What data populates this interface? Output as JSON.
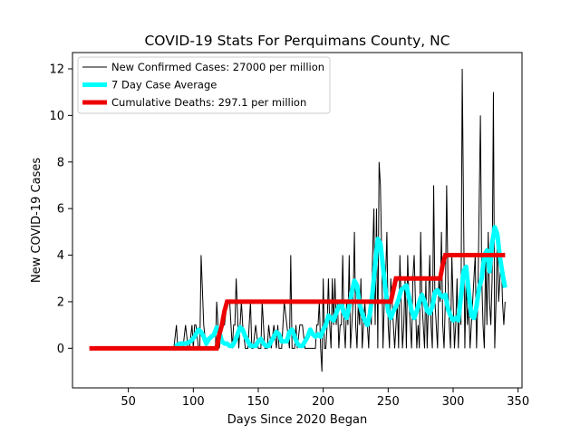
{
  "chart_data": {
    "type": "line",
    "title": "COVID-19 Stats For Perquimans County, NC",
    "xlabel": "Days Since 2020 Began",
    "ylabel": "New COVID-19 Cases",
    "xlim": [
      7,
      353
    ],
    "ylim": [
      -1.7,
      12.7
    ],
    "xticks": [
      50,
      100,
      150,
      200,
      250,
      300,
      350
    ],
    "yticks": [
      0,
      2,
      4,
      6,
      8,
      10,
      12
    ],
    "grid": false,
    "legend_position": "top-left",
    "series": [
      {
        "name": "New Confirmed Cases: 27000 per million",
        "color": "#000000",
        "style": "thin",
        "x": [
          20,
          85,
          87,
          88,
          90,
          92,
          94,
          96,
          97,
          99,
          100,
          101,
          102,
          104,
          105,
          106,
          108,
          110,
          112,
          114,
          116,
          117,
          118,
          119,
          120,
          122,
          124,
          126,
          128,
          130,
          131,
          132,
          133,
          135,
          137,
          138,
          140,
          142,
          144,
          145,
          146,
          148,
          150,
          152,
          153,
          155,
          157,
          158,
          160,
          162,
          164,
          165,
          166,
          168,
          170,
          172,
          174,
          175,
          176,
          178,
          179,
          180,
          182,
          184,
          186,
          188,
          190,
          192,
          194,
          195,
          196,
          197,
          198,
          199,
          200,
          201,
          202,
          203,
          204,
          205,
          206,
          207,
          208,
          209,
          210,
          211,
          212,
          213,
          214,
          215,
          216,
          217,
          218,
          219,
          220,
          221,
          222,
          223,
          224,
          225,
          226,
          227,
          228,
          229,
          230,
          231,
          232,
          233,
          234,
          235,
          236,
          237,
          238,
          239,
          240,
          241,
          242,
          243,
          244,
          245,
          246,
          247,
          248,
          249,
          250,
          251,
          252,
          253,
          254,
          255,
          256,
          257,
          258,
          259,
          260,
          261,
          262,
          263,
          264,
          265,
          266,
          267,
          268,
          269,
          270,
          271,
          272,
          273,
          274,
          275,
          276,
          277,
          278,
          279,
          280,
          281,
          282,
          283,
          284,
          285,
          286,
          287,
          288,
          289,
          290,
          291,
          292,
          293,
          294,
          295,
          296,
          297,
          298,
          299,
          300,
          301,
          302,
          303,
          304,
          305,
          306,
          307,
          308,
          309,
          310,
          311,
          312,
          313,
          314,
          315,
          316,
          317,
          318,
          319,
          320,
          321,
          322,
          323,
          324,
          325,
          326,
          327,
          328,
          329,
          330,
          331,
          332,
          333,
          334,
          335,
          336,
          337,
          338,
          339,
          340
        ],
        "y": [
          0,
          0,
          1,
          0,
          0,
          0,
          1,
          0,
          0,
          1,
          0,
          1,
          1,
          0,
          0,
          4,
          1,
          0,
          0,
          0,
          0,
          0,
          2,
          1,
          0,
          1,
          1,
          2,
          2,
          0,
          1,
          1,
          3,
          0,
          2,
          1,
          0,
          0,
          2,
          0,
          0,
          1,
          0,
          0,
          2,
          0,
          0,
          1,
          0,
          1,
          0,
          1,
          0,
          0,
          2,
          1,
          0,
          4,
          0,
          0,
          1,
          0,
          1,
          1,
          0,
          0,
          0,
          0,
          0,
          1,
          1,
          2,
          0,
          -1,
          3,
          0,
          0,
          1,
          3,
          1,
          0,
          3,
          1,
          3,
          1,
          2,
          0,
          1,
          1,
          4,
          1,
          0,
          2,
          1,
          4,
          0,
          1,
          2,
          5,
          1,
          0,
          2,
          1,
          3,
          0,
          1,
          2,
          1,
          1,
          0,
          2,
          1,
          4,
          6,
          1,
          6,
          0,
          8,
          7,
          4,
          0,
          2,
          3,
          5,
          1,
          0,
          3,
          2,
          1,
          0,
          1,
          2,
          0,
          4,
          2,
          0,
          1,
          3,
          0,
          4,
          2,
          1,
          0,
          3,
          4,
          2,
          0,
          1,
          0,
          5,
          2,
          1,
          0,
          3,
          0,
          2,
          4,
          1,
          0,
          7,
          2,
          1,
          0,
          3,
          2,
          5,
          1,
          0,
          2,
          7,
          3,
          1,
          0,
          4,
          2,
          0,
          1,
          3,
          0,
          2,
          1,
          12,
          6,
          0,
          3,
          1,
          2,
          0,
          1,
          2,
          3,
          4,
          0,
          2,
          6,
          10,
          3,
          1,
          0,
          4,
          1,
          5,
          2,
          1,
          3,
          11,
          0,
          2,
          5,
          2,
          3,
          4,
          2,
          1,
          2
        ]
      },
      {
        "name": "7 Day Case Average",
        "color": "#00ffff",
        "style": "thick",
        "x": [
          86,
          90,
          94,
          98,
          101,
          104,
          106,
          108,
          110,
          112,
          114,
          116,
          118,
          120,
          122,
          124,
          126,
          128,
          130,
          132,
          134,
          136,
          138,
          140,
          142,
          144,
          146,
          148,
          150,
          152,
          154,
          156,
          158,
          160,
          162,
          164,
          166,
          168,
          170,
          172,
          174,
          176,
          178,
          180,
          182,
          184,
          186,
          188,
          190,
          192,
          194,
          196,
          198,
          200,
          202,
          204,
          206,
          208,
          210,
          212,
          214,
          216,
          218,
          220,
          222,
          224,
          226,
          228,
          230,
          232,
          234,
          236,
          238,
          240,
          242,
          244,
          246,
          248,
          250,
          252,
          254,
          256,
          258,
          260,
          262,
          264,
          266,
          268,
          270,
          272,
          274,
          276,
          278,
          280,
          282,
          284,
          286,
          288,
          290,
          292,
          294,
          296,
          298,
          300,
          302,
          304,
          306,
          308,
          310,
          312,
          314,
          316,
          318,
          320,
          322,
          324,
          326,
          328,
          330,
          332,
          334,
          336,
          338,
          340
        ],
        "y": [
          0.1,
          0.2,
          0.2,
          0.3,
          0.5,
          0.8,
          0.7,
          0.5,
          0.2,
          0.4,
          0.5,
          0.6,
          0.9,
          0.7,
          0.3,
          0.2,
          0.2,
          0.1,
          0.1,
          0.3,
          0.6,
          0.9,
          0.8,
          0.5,
          0.3,
          0.1,
          0.1,
          0.1,
          0.3,
          0.4,
          0.2,
          0.1,
          0.1,
          0.3,
          0.5,
          0.7,
          0.6,
          0.3,
          0.3,
          0.3,
          0.7,
          0.8,
          0.5,
          0.2,
          0.1,
          0.1,
          0.3,
          0.5,
          0.8,
          0.6,
          0.5,
          0.6,
          0.5,
          0.8,
          1.0,
          1.4,
          1.3,
          1.2,
          1.5,
          1.8,
          1.9,
          1.5,
          1.3,
          1.8,
          2.4,
          2.9,
          2.7,
          1.9,
          1.5,
          1.2,
          1.0,
          1.5,
          2.4,
          3.6,
          4.7,
          4.5,
          3.5,
          2.5,
          1.6,
          1.3,
          1.6,
          1.8,
          2.1,
          2.5,
          2.6,
          2.7,
          2.2,
          1.6,
          1.3,
          1.6,
          2.0,
          2.3,
          2.0,
          1.6,
          1.5,
          1.8,
          2.4,
          2.5,
          2.3,
          2.2,
          2.3,
          1.7,
          1.4,
          1.2,
          1.3,
          1.2,
          2.2,
          3.3,
          3.5,
          2.4,
          1.4,
          1.3,
          1.8,
          2.6,
          3.0,
          4.0,
          4.2,
          3.3,
          4.5,
          5.2,
          4.9,
          3.9,
          3.2,
          2.6
        ]
      },
      {
        "name": "Cumulative Deaths: 297.1 per million",
        "color": "#ee0000",
        "style": "thick-step",
        "x": [
          20,
          118,
          120,
          122,
          124,
          126,
          250,
          252,
          254,
          256,
          288,
          290,
          292,
          294,
          340
        ],
        "y": [
          0,
          0,
          0.6,
          1.0,
          1.6,
          2,
          2,
          2,
          2.5,
          3,
          3,
          3,
          3.6,
          4,
          4
        ]
      }
    ]
  }
}
